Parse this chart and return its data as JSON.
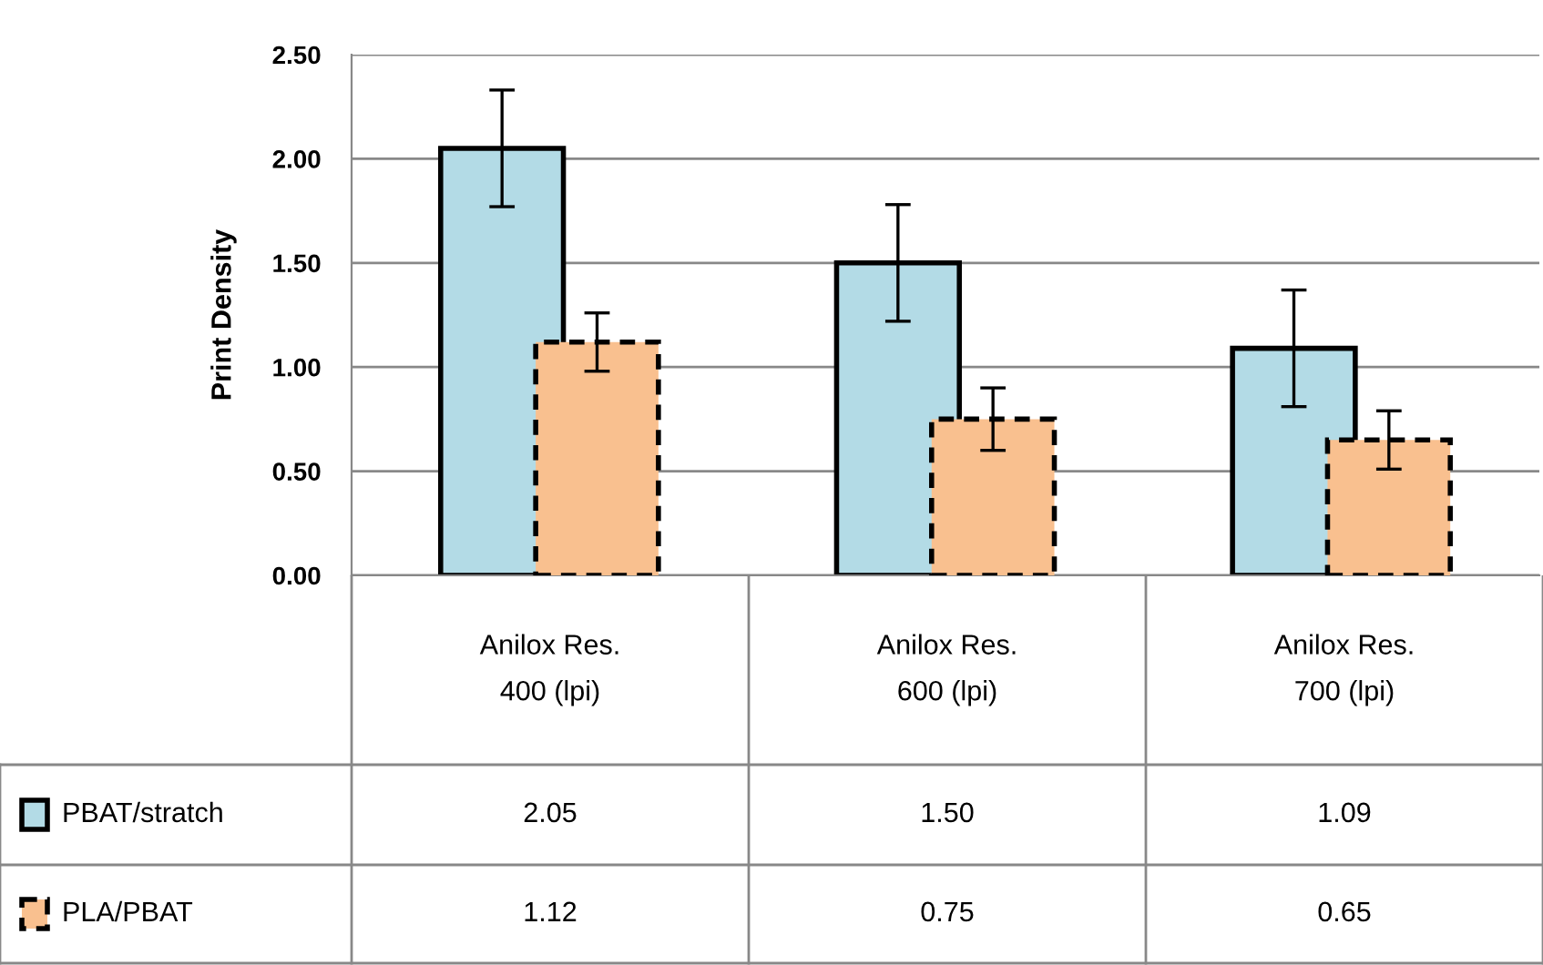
{
  "chart_data": {
    "type": "bar",
    "ylabel": "Print Density",
    "categories": [
      "Anilox Res.\n400 (lpi)",
      "Anilox Res.\n600 (lpi)",
      "Anilox Res.\n700 (lpi)"
    ],
    "series": [
      {
        "name": "PBAT/stratch",
        "color": "#b3dbe6",
        "values": [
          2.05,
          1.5,
          1.09
        ],
        "value_labels": [
          "2.05",
          "1.50",
          "1.09"
        ],
        "errors": [
          0.28,
          0.28,
          0.28
        ],
        "line_style": "solid"
      },
      {
        "name": "PLA/PBAT",
        "color": "#f9c08f",
        "values": [
          1.12,
          0.75,
          0.65
        ],
        "value_labels": [
          "1.12",
          "0.75",
          "0.65"
        ],
        "errors": [
          0.14,
          0.15,
          0.14
        ],
        "line_style": "dashed"
      }
    ],
    "ylim": [
      0,
      2.5
    ],
    "yticks": [
      {
        "value": 0,
        "label": "0.00"
      },
      {
        "value": 0.5,
        "label": "0.50"
      },
      {
        "value": 1,
        "label": "1.00"
      },
      {
        "value": 1.5,
        "label": "1.50"
      },
      {
        "value": 2,
        "label": "2.00"
      },
      {
        "value": 2.5,
        "label": "2.50"
      }
    ],
    "grid": "y",
    "legend": "bottom left"
  }
}
